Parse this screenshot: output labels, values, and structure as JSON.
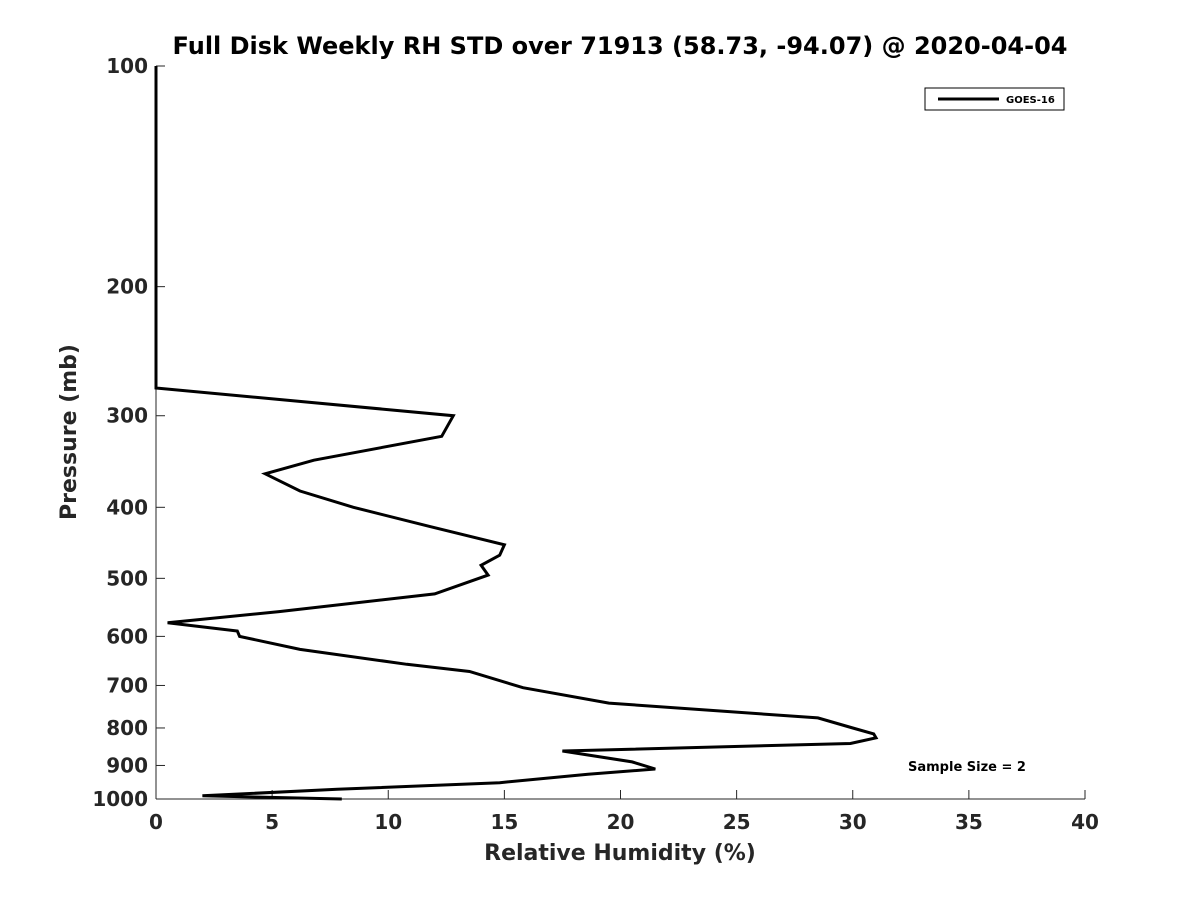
{
  "chart_data": {
    "type": "line",
    "title": "Full Disk Weekly RH STD over 71913 (58.73, -94.07) @ 2020-04-04",
    "xlabel": "Relative Humidity (%)",
    "ylabel": "Pressure (mb)",
    "xlim": [
      0,
      40
    ],
    "ylim": [
      100,
      1000
    ],
    "yscale": "log",
    "y_reversed": true,
    "xticks": [
      0,
      5,
      10,
      15,
      20,
      25,
      30,
      35,
      40
    ],
    "yticks": [
      100,
      200,
      300,
      400,
      500,
      600,
      700,
      800,
      900,
      1000
    ],
    "grid": false,
    "legend_position": "top-right",
    "annotation": "Sample Size = 2",
    "series": [
      {
        "name": "GOES-16",
        "color": "#000000",
        "x": [
          0,
          0,
          0,
          0,
          0,
          12.8,
          12.3,
          6.8,
          4.7,
          6.2,
          8.5,
          11.8,
          15.0,
          14.8,
          14.0,
          14.3,
          12.0,
          5.3,
          0.5,
          3.5,
          3.6,
          6.2,
          10.8,
          13.5,
          15.8,
          19.5,
          28.5,
          30.0,
          30.9,
          31.0,
          29.9,
          17.5,
          20.5,
          21.5,
          18.6,
          14.8,
          7.8,
          2.0,
          8.0
        ],
        "y": [
          100,
          150,
          200,
          250,
          275,
          300,
          320,
          345,
          360,
          380,
          400,
          425,
          450,
          465,
          480,
          495,
          525,
          555,
          575,
          590,
          600,
          625,
          655,
          670,
          705,
          740,
          775,
          800,
          815,
          825,
          840,
          860,
          890,
          910,
          925,
          950,
          970,
          990,
          1000
        ]
      }
    ]
  }
}
